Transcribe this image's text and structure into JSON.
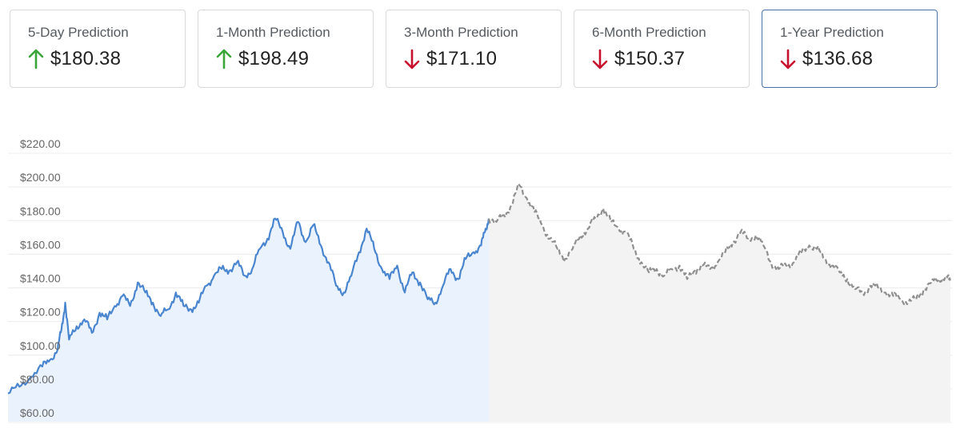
{
  "predictions": [
    {
      "label": "5-Day Prediction",
      "value": "$180.38",
      "direction": "up"
    },
    {
      "label": "1-Month Prediction",
      "value": "$198.49",
      "direction": "up"
    },
    {
      "label": "3-Month Prediction",
      "value": "$171.10",
      "direction": "down"
    },
    {
      "label": "6-Month Prediction",
      "value": "$150.37",
      "direction": "down"
    },
    {
      "label": "1-Year Prediction",
      "value": "$136.68",
      "direction": "down",
      "selected": true
    }
  ],
  "colors": {
    "up": "#3aa63a",
    "down": "#c8102e",
    "history_line": "#4a86d0",
    "history_fill": "#eaf2fd",
    "forecast_line": "#8f8f8f",
    "forecast_fill": "#f3f3f3"
  },
  "chart_data": {
    "type": "line",
    "title": "",
    "xlabel": "",
    "ylabel": "",
    "ylim": [
      60,
      220
    ],
    "y_ticks": [
      "$60.00",
      "$80.00",
      "$100.00",
      "$120.00",
      "$140.00",
      "$160.00",
      "$180.00",
      "$200.00",
      "$220.00"
    ],
    "y_tick_values": [
      60,
      80,
      100,
      120,
      140,
      160,
      180,
      200,
      220
    ],
    "grid": true,
    "series": [
      {
        "style": "solid",
        "role": "historical",
        "points": [
          [
            0,
            72
          ],
          [
            3,
            76
          ],
          [
            6,
            82
          ],
          [
            9,
            88
          ],
          [
            11,
            92
          ],
          [
            13,
            98
          ],
          [
            14,
            110
          ],
          [
            15,
            126
          ],
          [
            16,
            104
          ],
          [
            18,
            112
          ],
          [
            20,
            116
          ],
          [
            22,
            108
          ],
          [
            24,
            120
          ],
          [
            26,
            116
          ],
          [
            28,
            124
          ],
          [
            30,
            130
          ],
          [
            32,
            124
          ],
          [
            34,
            138
          ],
          [
            36,
            132
          ],
          [
            38,
            126
          ],
          [
            40,
            118
          ],
          [
            42,
            122
          ],
          [
            44,
            132
          ],
          [
            46,
            124
          ],
          [
            48,
            122
          ],
          [
            50,
            126
          ],
          [
            52,
            136
          ],
          [
            54,
            142
          ],
          [
            56,
            146
          ],
          [
            58,
            145
          ],
          [
            60,
            150
          ],
          [
            62,
            142
          ],
          [
            64,
            146
          ],
          [
            66,
            158
          ],
          [
            68,
            164
          ],
          [
            70,
            176
          ],
          [
            72,
            168
          ],
          [
            74,
            158
          ],
          [
            76,
            174
          ],
          [
            78,
            162
          ],
          [
            80,
            172
          ],
          [
            82,
            160
          ],
          [
            84,
            150
          ],
          [
            86,
            136
          ],
          [
            88,
            132
          ],
          [
            90,
            142
          ],
          [
            92,
            156
          ],
          [
            94,
            170
          ],
          [
            96,
            158
          ],
          [
            98,
            146
          ],
          [
            100,
            140
          ],
          [
            102,
            148
          ],
          [
            104,
            132
          ],
          [
            106,
            144
          ],
          [
            108,
            138
          ],
          [
            110,
            128
          ],
          [
            112,
            126
          ],
          [
            114,
            136
          ],
          [
            116,
            146
          ],
          [
            118,
            140
          ],
          [
            120,
            152
          ],
          [
            122,
            156
          ],
          [
            124,
            160
          ],
          [
            125,
            168
          ],
          [
            126,
            176
          ]
        ]
      },
      {
        "style": "dashed",
        "role": "forecast",
        "points": [
          [
            126,
            176
          ],
          [
            128,
            174
          ],
          [
            130,
            178
          ],
          [
            132,
            184
          ],
          [
            134,
            196
          ],
          [
            136,
            188
          ],
          [
            138,
            180
          ],
          [
            140,
            172
          ],
          [
            142,
            164
          ],
          [
            144,
            158
          ],
          [
            146,
            152
          ],
          [
            148,
            158
          ],
          [
            150,
            166
          ],
          [
            152,
            170
          ],
          [
            154,
            176
          ],
          [
            156,
            182
          ],
          [
            158,
            174
          ],
          [
            160,
            170
          ],
          [
            162,
            168
          ],
          [
            164,
            158
          ],
          [
            166,
            150
          ],
          [
            168,
            144
          ],
          [
            170,
            146
          ],
          [
            172,
            142
          ],
          [
            174,
            146
          ],
          [
            176,
            148
          ],
          [
            178,
            140
          ],
          [
            180,
            145
          ],
          [
            182,
            148
          ],
          [
            184,
            146
          ],
          [
            186,
            150
          ],
          [
            188,
            156
          ],
          [
            190,
            162
          ],
          [
            192,
            168
          ],
          [
            194,
            164
          ],
          [
            196,
            166
          ],
          [
            198,
            160
          ],
          [
            200,
            150
          ],
          [
            202,
            146
          ],
          [
            204,
            148
          ],
          [
            206,
            150
          ],
          [
            208,
            156
          ],
          [
            210,
            160
          ],
          [
            212,
            158
          ],
          [
            214,
            152
          ],
          [
            216,
            148
          ],
          [
            218,
            144
          ],
          [
            220,
            140
          ],
          [
            222,
            134
          ],
          [
            224,
            132
          ],
          [
            226,
            136
          ],
          [
            228,
            135
          ],
          [
            230,
            132
          ],
          [
            232,
            130
          ],
          [
            234,
            128
          ],
          [
            236,
            126
          ],
          [
            238,
            128
          ],
          [
            240,
            134
          ],
          [
            242,
            138
          ],
          [
            244,
            140
          ],
          [
            246,
            142
          ],
          [
            247,
            138
          ]
        ]
      }
    ]
  }
}
